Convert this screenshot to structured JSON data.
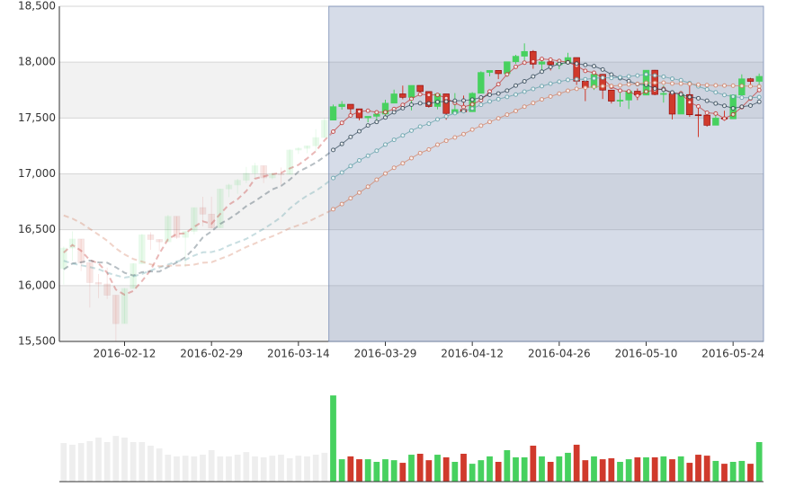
{
  "chart_data": [
    {
      "type": "candlestick",
      "categories": [
        null,
        null,
        null,
        null,
        null,
        null,
        null,
        "2016-02-12",
        null,
        null,
        null,
        null,
        null,
        null,
        null,
        null,
        null,
        "2016-02-29",
        null,
        null,
        null,
        null,
        null,
        null,
        null,
        null,
        null,
        "2016-03-14",
        null,
        null,
        null,
        null,
        null,
        null,
        null,
        null,
        null,
        "2016-03-29",
        null,
        null,
        null,
        null,
        null,
        null,
        null,
        null,
        null,
        "2016-04-12",
        null,
        null,
        null,
        null,
        null,
        null,
        null,
        null,
        null,
        "2016-04-26",
        null,
        null,
        null,
        null,
        null,
        null,
        null,
        null,
        null,
        "2016-05-10",
        null,
        null,
        null,
        null,
        null,
        null,
        null,
        null,
        null,
        "2016-05-24",
        null,
        null,
        null
      ],
      "ylim": [
        15500,
        18500
      ],
      "yticks": [
        {
          "value": 15500,
          "label": "15,500"
        },
        {
          "value": 16000,
          "label": "16,000"
        },
        {
          "value": 16500,
          "label": "16,500"
        },
        {
          "value": 17000,
          "label": "17,000"
        },
        {
          "value": 17500,
          "label": "17,500"
        },
        {
          "value": 18000,
          "label": "18,000"
        },
        {
          "value": 18500,
          "label": "18,500"
        }
      ],
      "grid": true,
      "brush_range": [
        31,
        80
      ],
      "up_color": "#47d15f",
      "down_color": "#d03a2c",
      "series": [
        {
          "type": "candlestick",
          "values": [
            [
              16153,
              16336,
              16010,
              16350
            ],
            [
              16336,
              16417,
              16220,
              16485
            ],
            [
              16417,
              16205,
              16130,
              16417
            ],
            [
              16205,
              16027,
              15803,
              16205
            ],
            [
              16027,
              16014,
              15888,
              16103
            ],
            [
              16014,
              15914,
              15880,
              16161
            ],
            [
              15914,
              15660,
              15504,
              15914
            ],
            [
              15660,
              15974,
              15660,
              15980
            ],
            [
              15974,
              16196,
              15974,
              16200
            ],
            [
              16196,
              16454,
              16196,
              16463
            ],
            [
              16454,
              16413,
              16320,
              16477
            ],
            [
              16413,
              16392,
              16310,
              16413
            ],
            [
              16392,
              16620,
              16392,
              16633
            ],
            [
              16620,
              16432,
              16418,
              16620
            ],
            [
              16432,
              16485,
              16166,
              16485
            ],
            [
              16485,
              16698,
              16459,
              16698
            ],
            [
              16698,
              16640,
              16530,
              16795
            ],
            [
              16640,
              16517,
              16510,
              16796
            ],
            [
              16517,
              16865,
              16517,
              16866
            ],
            [
              16865,
              16900,
              16792,
              16912
            ],
            [
              16900,
              16943,
              16821,
              16957
            ],
            [
              16943,
              17006,
              16917,
              17062
            ],
            [
              17006,
              17073,
              16961,
              17099
            ],
            [
              17073,
              16964,
              16917,
              17073
            ],
            [
              16964,
              17000,
              16950,
              17014
            ],
            [
              17000,
              16995,
              16902,
              17057
            ],
            [
              16995,
              17213,
              16995,
              17220
            ],
            [
              17213,
              17229,
              17178,
              17238
            ],
            [
              17229,
              17251,
              17185,
              17251
            ],
            [
              17251,
              17325,
              17204,
              17400
            ],
            [
              17325,
              17481,
              17325,
              17502
            ],
            [
              17481,
              17602,
              17481,
              17620
            ],
            [
              17602,
              17623,
              17575,
              17651
            ],
            [
              17623,
              17582,
              17533,
              17623
            ],
            [
              17582,
              17502,
              17480,
              17582
            ],
            [
              17502,
              17515,
              17461,
              17516
            ],
            [
              17515,
              17535,
              17474,
              17566
            ],
            [
              17535,
              17633,
              17502,
              17664
            ],
            [
              17633,
              17716,
              17633,
              17754
            ],
            [
              17716,
              17685,
              17668,
              17790
            ],
            [
              17685,
              17792,
              17568,
              17792
            ],
            [
              17792,
              17737,
              17712,
              17792
            ],
            [
              17737,
              17603,
              17592,
              17737
            ],
            [
              17603,
              17716,
              17578,
              17716
            ],
            [
              17716,
              17541,
              17484,
              17716
            ],
            [
              17541,
              17576,
              17541,
              17723
            ],
            [
              17576,
              17556,
              17550,
              17701
            ],
            [
              17556,
              17721,
              17556,
              17731
            ],
            [
              17721,
              17908,
              17721,
              17918
            ],
            [
              17908,
              17926,
              17873,
              17927
            ],
            [
              17926,
              17897,
              17848,
              17927
            ],
            [
              17897,
              18004,
              17869,
              18004
            ],
            [
              18004,
              18053,
              17985,
              18066
            ],
            [
              18053,
              18096,
              18015,
              18168
            ],
            [
              18096,
              17982,
              17941,
              18108
            ],
            [
              17982,
              18003,
              17923,
              18019
            ],
            [
              18003,
              17977,
              17925,
              18003
            ],
            [
              17977,
              17990,
              17937,
              18025
            ],
            [
              17990,
              18041,
              17980,
              18084
            ],
            [
              18041,
              17830,
              17796,
              18041
            ],
            [
              17830,
              17773,
              17651,
              17844
            ],
            [
              17773,
              17891,
              17751,
              17891
            ],
            [
              17891,
              17750,
              17670,
              17891
            ],
            [
              17750,
              17651,
              17630,
              17751
            ],
            [
              17651,
              17660,
              17600,
              17728
            ],
            [
              17660,
              17740,
              17580,
              17740
            ],
            [
              17740,
              17705,
              17660,
              17764
            ],
            [
              17705,
              17928,
              17705,
              17929
            ],
            [
              17928,
              17711,
              17704,
              17930
            ],
            [
              17711,
              17720,
              17638,
              17790
            ],
            [
              17720,
              17535,
              17488,
              17720
            ],
            [
              17535,
              17710,
              17535,
              17740
            ],
            [
              17710,
              17529,
              17510,
              17800
            ],
            [
              17529,
              17526,
              17330,
              17592
            ],
            [
              17526,
              17435,
              17422,
              17526
            ],
            [
              17435,
              17500,
              17435,
              17555
            ],
            [
              17500,
              17492,
              17476,
              17565
            ],
            [
              17492,
              17706,
              17492,
              17707
            ],
            [
              17706,
              17851,
              17706,
              17891
            ],
            [
              17851,
              17828,
              17773,
              17860
            ],
            [
              17828,
              17873,
              17780,
              17898
            ]
          ]
        },
        {
          "type": "line",
          "color": "#c23531",
          "values": [
            16295,
            16364,
            16312,
            16228,
            16200,
            16115,
            15964,
            15918,
            15952,
            16040,
            16139,
            16286,
            16415,
            16462,
            16468,
            16525,
            16575,
            16554,
            16641,
            16724,
            16773,
            16846,
            16957,
            16977,
            16997,
            17008,
            17049,
            17080,
            17138,
            17203,
            17300,
            17378,
            17456,
            17523,
            17558,
            17565,
            17551,
            17553,
            17580,
            17617,
            17672,
            17713,
            17707,
            17707,
            17678,
            17635,
            17598,
            17622,
            17660,
            17737,
            17802,
            17891,
            17958,
            17995,
            18006,
            18028,
            18022,
            18010,
            17999,
            17968,
            17922,
            17905,
            17857,
            17779,
            17745,
            17738,
            17701,
            17737,
            17749,
            17761,
            17720,
            17721,
            17641,
            17604,
            17547,
            17540,
            17496,
            17532,
            17597,
            17675,
            17750
          ]
        },
        {
          "type": "line",
          "color": "#2f4554",
          "values": [
            16145,
            16198,
            16209,
            16224,
            16208,
            16205,
            16164,
            16115,
            16090,
            16120,
            16127,
            16125,
            16167,
            16207,
            16254,
            16332,
            16431,
            16485,
            16552,
            16596,
            16649,
            16711,
            16756,
            16809,
            16861,
            16891,
            16948,
            17019,
            17058,
            17100,
            17154,
            17214,
            17268,
            17331,
            17381,
            17433,
            17465,
            17505,
            17552,
            17588,
            17619,
            17632,
            17630,
            17644,
            17648,
            17654,
            17656,
            17665,
            17684,
            17708,
            17719,
            17745,
            17790,
            17828,
            17872,
            17915,
            17957,
            17984,
            17997,
            17987,
            17975,
            17964,
            17934,
            17889,
            17857,
            17830,
            17803,
            17797,
            17764,
            17753,
            17729,
            17711,
            17689,
            17677,
            17654,
            17630,
            17609,
            17587,
            17601,
            17611,
            17645
          ]
        },
        {
          "type": "line",
          "color": "#61a0a8",
          "values": [
            16222,
            16197,
            16182,
            16166,
            16147,
            16116,
            16092,
            16072,
            16082,
            16104,
            16136,
            16162,
            16188,
            16216,
            16231,
            16269,
            16298,
            16300,
            16321,
            16358,
            16388,
            16418,
            16462,
            16508,
            16558,
            16612,
            16690,
            16752,
            16805,
            16848,
            16902,
            16963,
            17012,
            17070,
            17121,
            17162,
            17207,
            17262,
            17305,
            17344,
            17387,
            17423,
            17449,
            17488,
            17515,
            17544,
            17561,
            17585,
            17618,
            17648,
            17669,
            17689,
            17710,
            17736,
            17760,
            17785,
            17807,
            17825,
            17841,
            17848,
            17847,
            17855,
            17862,
            17859,
            17865,
            17873,
            17880,
            17891,
            17881,
            17870,
            17852,
            17838,
            17812,
            17783,
            17756,
            17730,
            17706,
            17692,
            17683,
            17682,
            17687
          ]
        },
        {
          "type": "line",
          "color": "#d48265",
          "values": [
            16628,
            16600,
            16560,
            16508,
            16456,
            16402,
            16333,
            16279,
            16238,
            16215,
            16190,
            16173,
            16177,
            16180,
            16182,
            16188,
            16205,
            16209,
            16239,
            16268,
            16307,
            16345,
            16377,
            16413,
            16441,
            16476,
            16514,
            16540,
            16567,
            16605,
            16643,
            16683,
            16730,
            16782,
            16832,
            16885,
            16948,
            17003,
            17054,
            17095,
            17141,
            17186,
            17218,
            17261,
            17297,
            17326,
            17356,
            17396,
            17431,
            17465,
            17497,
            17530,
            17563,
            17601,
            17634,
            17667,
            17693,
            17718,
            17744,
            17761,
            17771,
            17780,
            17785,
            17787,
            17792,
            17800,
            17805,
            17815,
            17815,
            17816,
            17808,
            17807,
            17804,
            17798,
            17794,
            17792,
            17790,
            17789,
            17787,
            17784,
            17783
          ]
        }
      ]
    },
    {
      "type": "bar",
      "ylim": [
        0,
        400
      ],
      "values": [
        162,
        155,
        162,
        170,
        185,
        166,
        192,
        185,
        166,
        166,
        151,
        139,
        113,
        106,
        109,
        106,
        113,
        132,
        106,
        106,
        113,
        124,
        106,
        102,
        109,
        113,
        98,
        109,
        106,
        113,
        121,
        362,
        94,
        106,
        94,
        94,
        83,
        94,
        90,
        79,
        113,
        117,
        90,
        113,
        102,
        83,
        117,
        75,
        90,
        106,
        83,
        132,
        102,
        102,
        151,
        106,
        83,
        106,
        121,
        155,
        90,
        106,
        94,
        98,
        83,
        94,
        102,
        102,
        102,
        106,
        94,
        106,
        79,
        113,
        109,
        87,
        75,
        83,
        87,
        75,
        166
      ]
    }
  ]
}
